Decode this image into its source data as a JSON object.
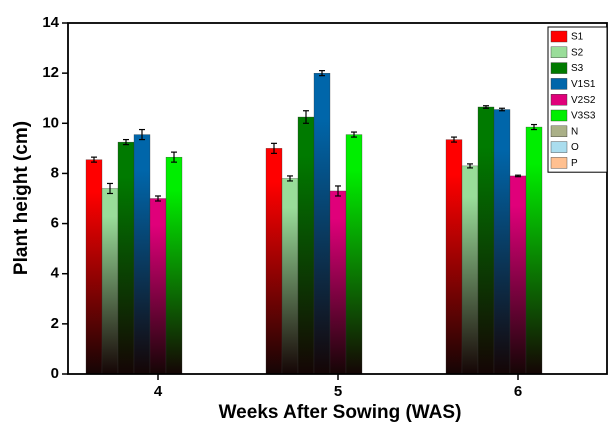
{
  "chart_data": {
    "type": "bar",
    "x_label": "Weeks After Sowing (WAS)",
    "y_label": "Plant height (cm)",
    "categories": [
      "4",
      "5",
      "6"
    ],
    "ylim": [
      0,
      14
    ],
    "yticks": [
      0,
      2,
      4,
      6,
      8,
      10,
      12,
      14
    ],
    "legend": "upper right",
    "series": [
      {
        "name": "S1",
        "color": "#ff0000",
        "values": [
          8.55,
          9.0,
          9.35
        ],
        "errors": [
          0.1,
          0.2,
          0.1
        ]
      },
      {
        "name": "S2",
        "color": "#99dd99",
        "values": [
          7.4,
          7.8,
          8.3
        ],
        "errors": [
          0.2,
          0.1,
          0.08
        ]
      },
      {
        "name": "S3",
        "color": "#007a00",
        "values": [
          9.25,
          10.25,
          10.65
        ],
        "errors": [
          0.1,
          0.25,
          0.05
        ]
      },
      {
        "name": "V1S1",
        "color": "#0066aa",
        "values": [
          9.55,
          12.0,
          10.55
        ],
        "errors": [
          0.2,
          0.1,
          0.05
        ]
      },
      {
        "name": "V2S2",
        "color": "#e0007a",
        "values": [
          7.0,
          7.3,
          7.9
        ],
        "errors": [
          0.1,
          0.2,
          0.03
        ]
      },
      {
        "name": "V3S3",
        "color": "#00ee00",
        "values": [
          8.65,
          9.55,
          9.85
        ],
        "errors": [
          0.2,
          0.1,
          0.1
        ]
      },
      {
        "name": "N",
        "color": "#aab088",
        "values": [
          null,
          null,
          null
        ]
      },
      {
        "name": "O",
        "color": "#aaddee",
        "values": [
          null,
          null,
          null
        ]
      },
      {
        "name": "P",
        "color": "#ffc090",
        "values": [
          null,
          null,
          null
        ]
      }
    ]
  }
}
